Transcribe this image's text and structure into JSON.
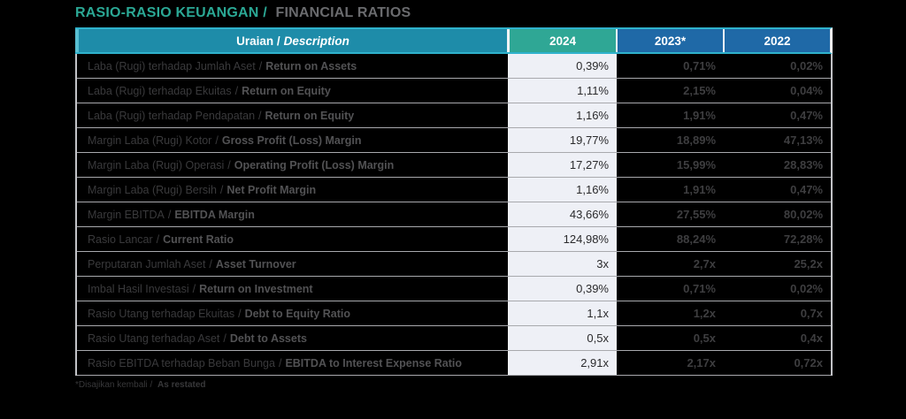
{
  "title": {
    "id": "RASIO-RASIO KEUANGAN /",
    "en": "FINANCIAL RATIOS"
  },
  "table": {
    "header": {
      "description_id": "Uraian /",
      "description_en": "Description",
      "year_2024": "2024",
      "year_2023": "2023*",
      "year_2022": "2022"
    },
    "rows": [
      {
        "label_id": "Laba (Rugi) terhadap Jumlah Aset",
        "label_en": "Return on Assets",
        "v2024": "0,39%",
        "v2023": "0,71%",
        "v2022": "0,02%"
      },
      {
        "label_id": "Laba (Rugi) terhadap Ekuitas",
        "label_en": "Return on Equity",
        "v2024": "1,11%",
        "v2023": "2,15%",
        "v2022": "0,04%"
      },
      {
        "label_id": "Laba (Rugi) terhadap Pendapatan",
        "label_en": "Return on Equity",
        "v2024": "1,16%",
        "v2023": "1,91%",
        "v2022": "0,47%"
      },
      {
        "label_id": "Margin Laba (Rugi) Kotor",
        "label_en": "Gross Profit (Loss) Margin",
        "v2024": "19,77%",
        "v2023": "18,89%",
        "v2022": "47,13%"
      },
      {
        "label_id": "Margin Laba (Rugi) Operasi",
        "label_en": "Operating Profit (Loss) Margin",
        "v2024": "17,27%",
        "v2023": "15,99%",
        "v2022": "28,83%"
      },
      {
        "label_id": "Margin Laba (Rugi) Bersih",
        "label_en": "Net Profit Margin",
        "v2024": "1,16%",
        "v2023": "1,91%",
        "v2022": "0,47%"
      },
      {
        "label_id": "Margin EBITDA",
        "label_en": "EBITDA Margin",
        "v2024": "43,66%",
        "v2023": "27,55%",
        "v2022": "80,02%"
      },
      {
        "label_id": "Rasio Lancar",
        "label_en": "Current Ratio",
        "v2024": "124,98%",
        "v2023": "88,24%",
        "v2022": "72,28%"
      },
      {
        "label_id": "Perputaran Jumlah Aset",
        "label_en": "Asset Turnover",
        "v2024": "3x",
        "v2023": "2,7x",
        "v2022": "25,2x"
      },
      {
        "label_id": "Imbal Hasil Investasi",
        "label_en": "Return on Investment",
        "v2024": "0,39%",
        "v2023": "0,71%",
        "v2022": "0,02%"
      },
      {
        "label_id": "Rasio Utang terhadap Ekuitas",
        "label_en": "Debt to Equity Ratio",
        "v2024": "1,1x",
        "v2023": "1,2x",
        "v2022": "0,7x"
      },
      {
        "label_id": "Rasio Utang terhadap Aset",
        "label_en": "Debt to Assets",
        "v2024": "0,5x",
        "v2023": "0,5x",
        "v2022": "0,4x"
      },
      {
        "label_id": "Rasio EBITDA terhadap Beban Bunga",
        "label_en": "EBITDA to Interest Expense Ratio",
        "v2024": "2,91x",
        "v2023": "2,17x",
        "v2022": "0,72x"
      }
    ]
  },
  "footnote": {
    "id": "*Disajikan kembali /",
    "en": "As restated"
  },
  "colors": {
    "background": "#000000",
    "title_teal": "#2BA895",
    "title_gray": "#6A6B6E",
    "header_teal": "#1E8CA9",
    "header_accent": "#58BFD2",
    "header_green_2024": "#2FA795",
    "header_blue": "#1F69A7",
    "header_border_cyan": "#2FB2CC",
    "col_2024_bg": "#EEF0F6",
    "row_line": "#A8A9AD",
    "label_text": "#3A3A3C",
    "value_text": "#3E3E40"
  }
}
